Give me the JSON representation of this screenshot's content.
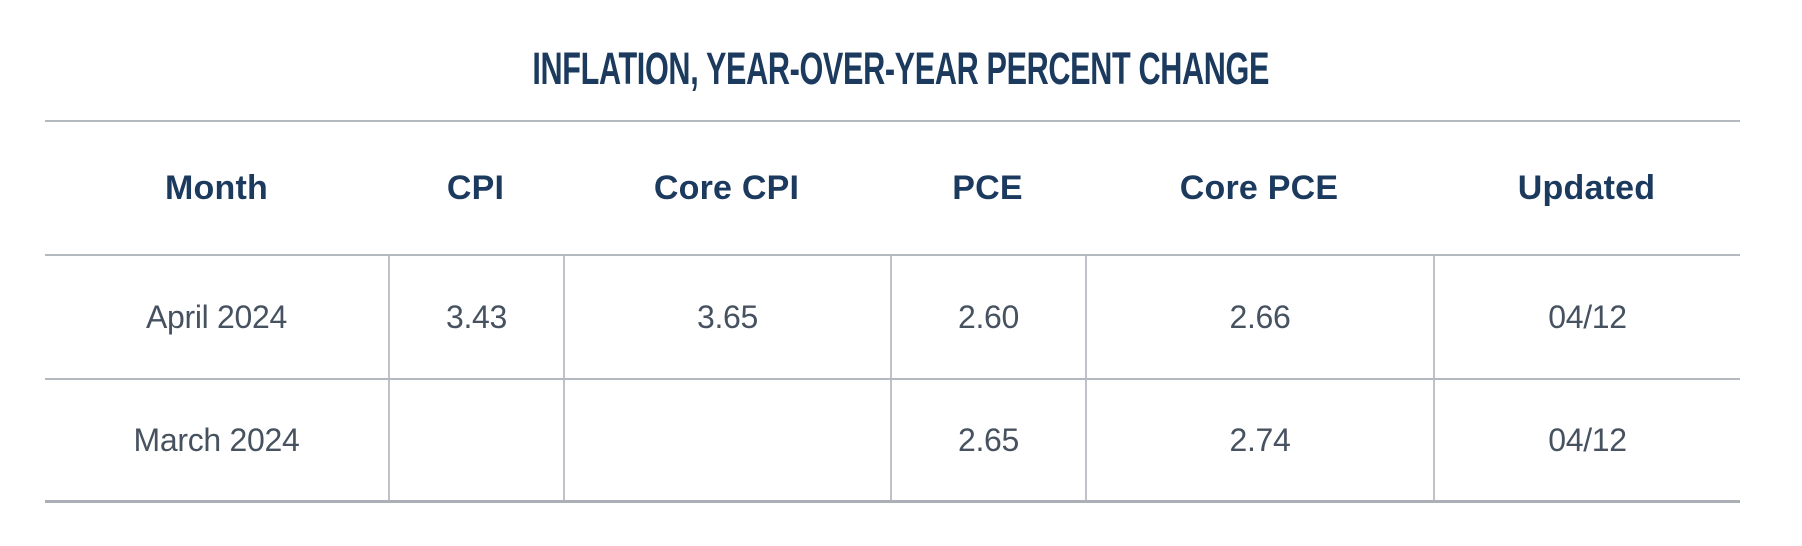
{
  "chart_data": {
    "type": "table",
    "title": "INFLATION, YEAR-OVER-YEAR PERCENT CHANGE",
    "columns": [
      "Month",
      "CPI",
      "Core CPI",
      "PCE",
      "Core PCE",
      "Updated"
    ],
    "rows": [
      [
        "April 2024",
        "3.43",
        "3.65",
        "2.60",
        "2.66",
        "04/12"
      ],
      [
        "March 2024",
        "",
        "",
        "2.65",
        "2.74",
        "04/12"
      ]
    ],
    "layout_hints": {
      "grid": "horizontal rules between rows; vertical dividers only within data rows",
      "alignment": "all cells centered"
    }
  },
  "colors": {
    "heading_text": "#1b3a5e",
    "body_text": "#475260",
    "horizontal_rule": "#b4b9bf",
    "vertical_divider": "#bfc3c9",
    "bottom_rule": "#abb0b6",
    "background": "#ffffff"
  }
}
